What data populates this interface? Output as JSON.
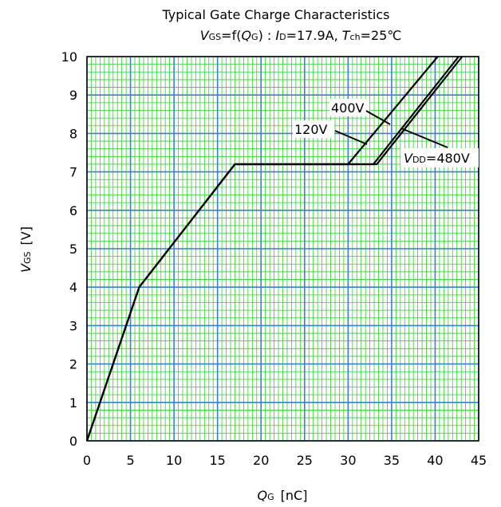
{
  "chart_data": {
    "type": "line",
    "title": "Typical Gate Charge Characteristics",
    "subtitle": {
      "v": "V",
      "gs": "GS",
      "eq_f": "=f(",
      "q": "Q",
      "g": "G",
      "close": ") : ",
      "i": "I",
      "d": "D",
      "id_val": "=17.9A, ",
      "t": "T",
      "ch": "ch",
      "tch_val": "=25℃"
    },
    "xlabel": {
      "q": "Q",
      "g": "G",
      "unit": "[nC]"
    },
    "ylabel": {
      "v": "V",
      "gs": "GS",
      "unit": "[V]"
    },
    "xlim": [
      0,
      45
    ],
    "ylim": [
      0,
      10
    ],
    "xticks": [
      "0",
      "5",
      "10",
      "15",
      "20",
      "25",
      "30",
      "35",
      "40",
      "45"
    ],
    "yticks": [
      "0",
      "1",
      "2",
      "3",
      "4",
      "5",
      "6",
      "7",
      "8",
      "9",
      "10"
    ],
    "grid": true,
    "series": [
      {
        "name": "120V",
        "x": [
          0,
          6,
          17,
          30,
          40.3
        ],
        "y": [
          0,
          4,
          7.2,
          7.2,
          10
        ]
      },
      {
        "name": "400V",
        "x": [
          0,
          6,
          17,
          32.9,
          42.7
        ],
        "y": [
          0,
          4,
          7.2,
          7.2,
          10
        ]
      },
      {
        "name": "480V",
        "x": [
          0,
          6,
          17,
          33.3,
          43.1
        ],
        "y": [
          0,
          4,
          7.2,
          7.2,
          10
        ]
      }
    ],
    "annotations": {
      "label_400": "400V",
      "label_120": "120V",
      "label_480": {
        "v": "V",
        "dd": "DD",
        "val": "=480V"
      }
    },
    "colors": {
      "grid_major": "#3b7fd1",
      "grid_minor": "#33cc33",
      "line": "#000000"
    }
  }
}
